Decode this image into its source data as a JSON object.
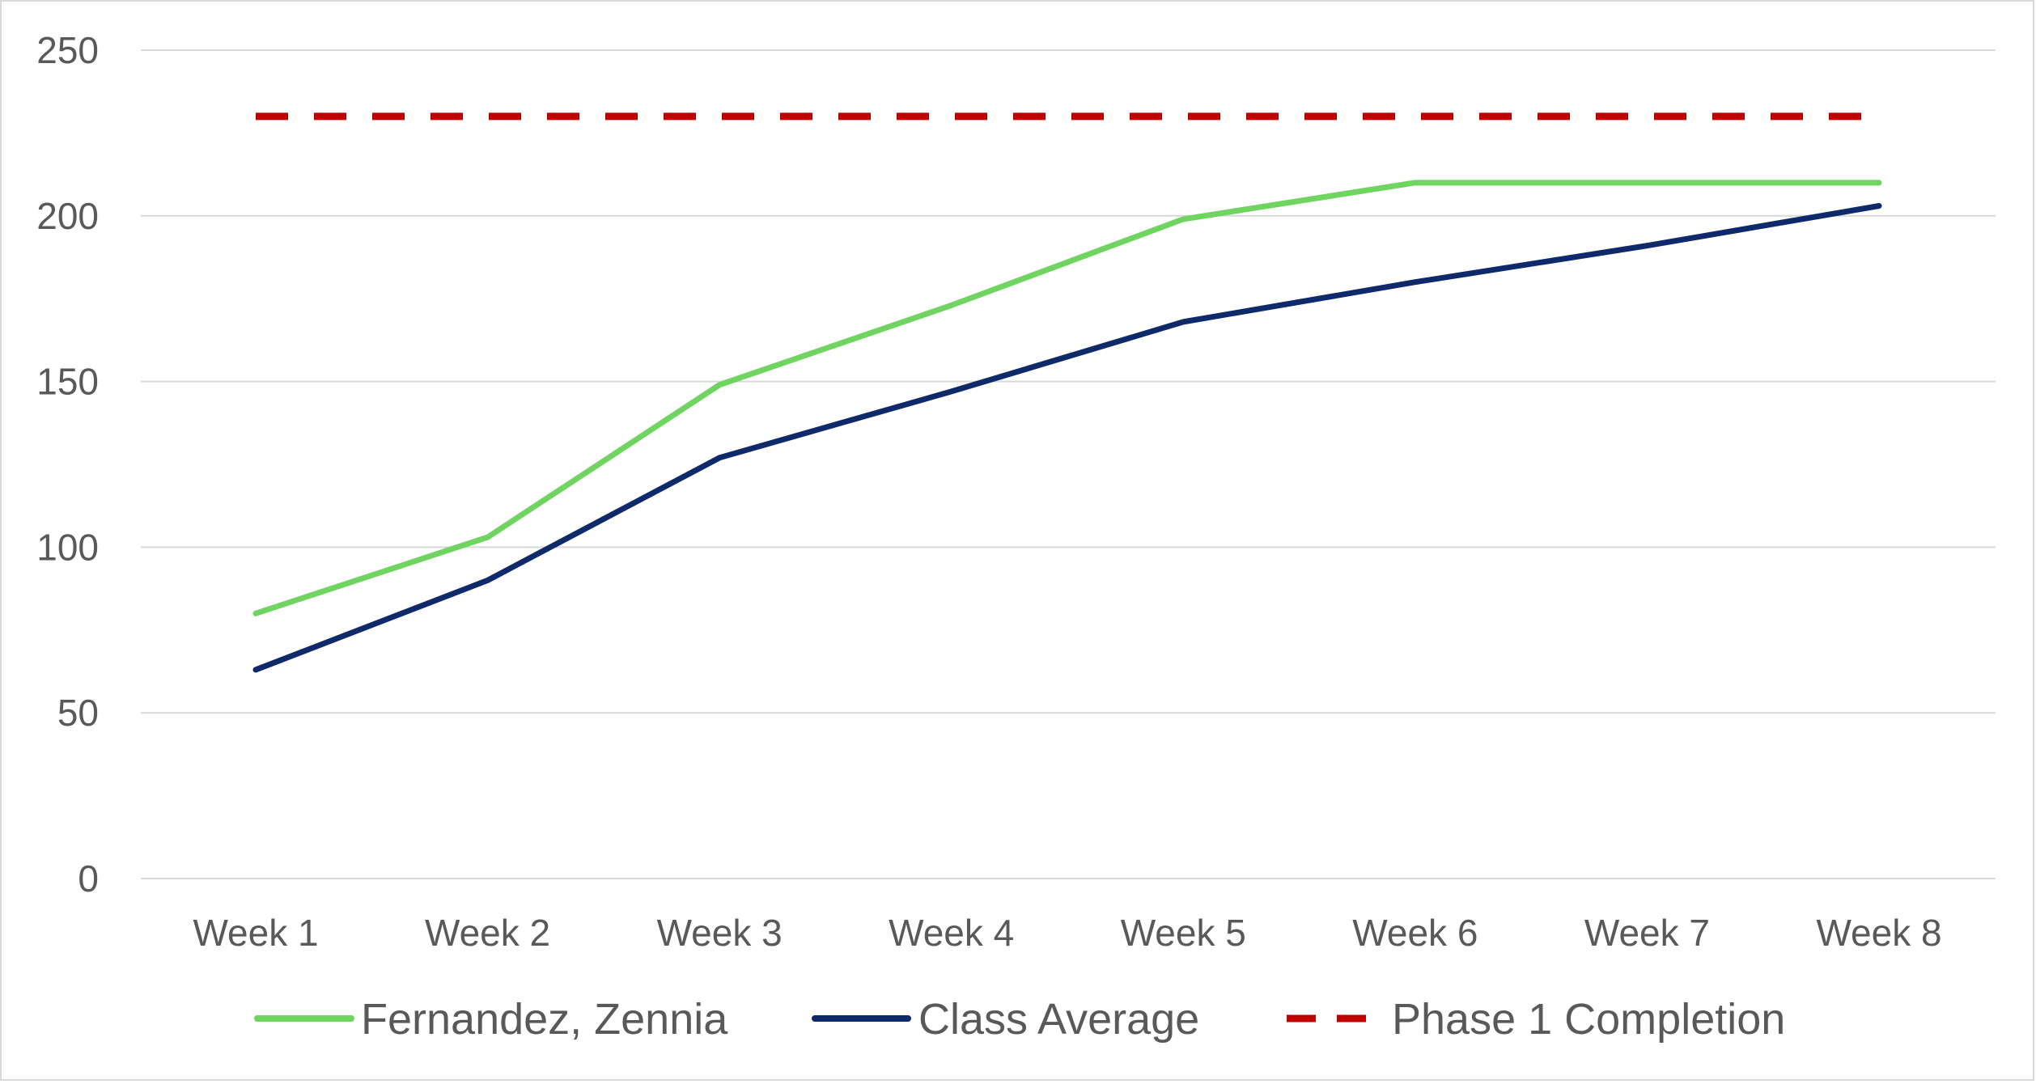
{
  "chart_data": {
    "type": "line",
    "title": "",
    "xlabel": "",
    "ylabel": "",
    "categories": [
      "Week 1",
      "Week 2",
      "Week 3",
      "Week 4",
      "Week 5",
      "Week 6",
      "Week 7",
      "Week 8"
    ],
    "ylim": [
      0,
      250
    ],
    "yticks": [
      0,
      50,
      100,
      150,
      200,
      250
    ],
    "grid": true,
    "legend_position": "bottom",
    "series": [
      {
        "name": "Fernandez, Zennia",
        "values": [
          80,
          103,
          149,
          173,
          199,
          210,
          210,
          210
        ],
        "color": "#6fd460",
        "style": "solid"
      },
      {
        "name": "Class Average",
        "values": [
          63,
          90,
          127,
          147,
          168,
          180,
          191,
          203
        ],
        "color": "#0e2a6b",
        "style": "solid"
      },
      {
        "name": "Phase 1 Completion",
        "values": [
          230,
          230,
          230,
          230,
          230,
          230,
          230,
          230
        ],
        "color": "#c00000",
        "style": "dashed"
      }
    ]
  }
}
